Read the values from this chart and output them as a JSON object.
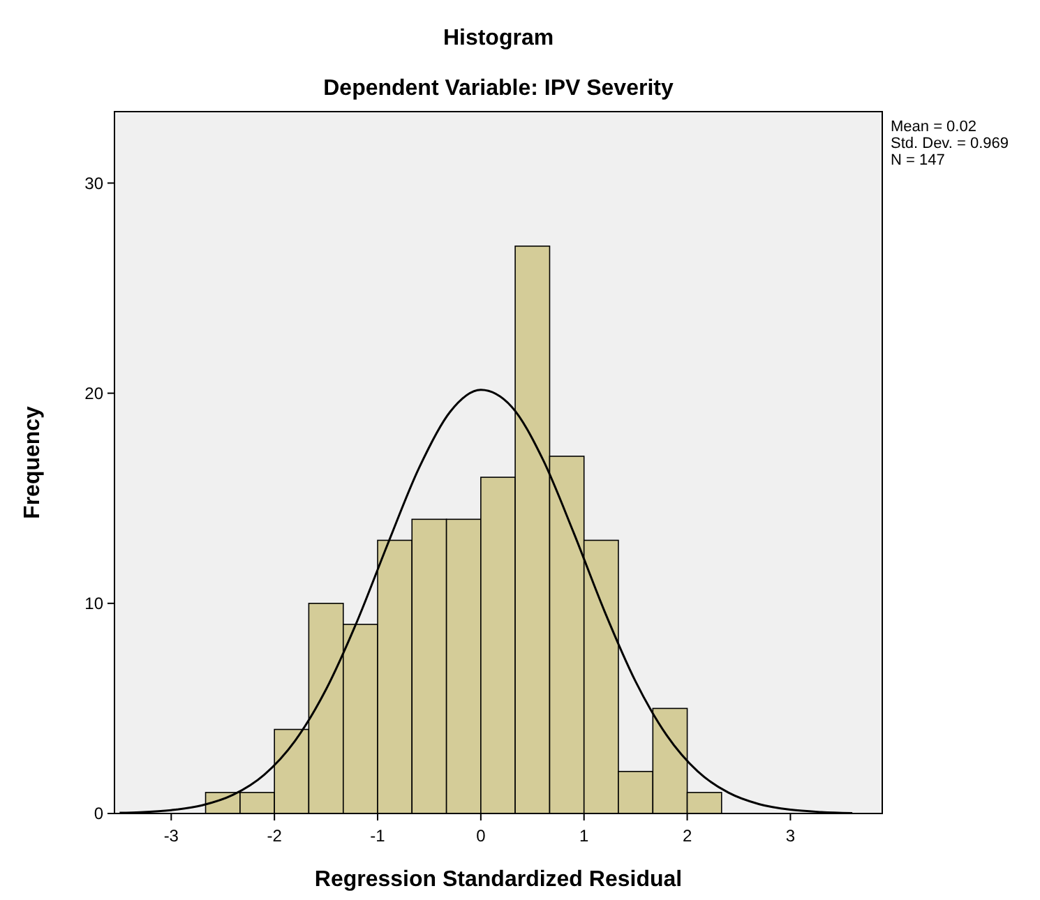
{
  "chart_data": {
    "type": "histogram",
    "title": "Histogram",
    "subtitle": "Dependent Variable: IPV Severity",
    "xlabel": "Regression Standardized Residual",
    "ylabel": "Frequency",
    "bins": [
      -2.667,
      -2.333,
      -2,
      -1.667,
      -1.333,
      -1,
      -0.667,
      -0.333,
      0,
      0.333,
      0.667,
      1,
      1.333,
      1.667,
      2,
      2.333
    ],
    "series": [
      {
        "color": "#d4cc98",
        "values": [
          1,
          1,
          4,
          10,
          9,
          13,
          14,
          14,
          16,
          27,
          17,
          13,
          2,
          5,
          1
        ]
      },
      {
        "type": "line",
        "color": "#000000",
        "x": [
          -3.5,
          -3.3,
          -3,
          -2.7,
          -2.4,
          -2.1,
          -1.8,
          -1.5,
          -1.2,
          -0.9,
          -0.6,
          -0.3,
          0,
          0.3,
          0.6,
          0.9,
          1.2,
          1.5,
          1.8,
          2.1,
          2.4,
          2.7,
          3,
          3.3,
          3.6
        ],
        "values": [
          0.03,
          0.06,
          0.16,
          0.39,
          0.89,
          1.84,
          3.46,
          5.9,
          9.13,
          12.85,
          16.43,
          19.1,
          20.16,
          19.35,
          16.86,
          13.36,
          9.61,
          6.28,
          3.73,
          2.01,
          0.99,
          0.44,
          0.18,
          0.07,
          0.02
        ]
      }
    ],
    "xlim": [
      -3.55,
      3.89
    ],
    "xticks": [
      -3,
      -2,
      -1,
      0,
      1,
      2,
      3
    ],
    "ylim": [
      0,
      33.4
    ],
    "yticks": [
      0,
      10,
      20,
      30
    ],
    "grid": false,
    "marker": "none",
    "annotations": [
      "Mean = 0.02",
      "Std. Dev. = 0.969",
      "N = 147"
    ]
  }
}
